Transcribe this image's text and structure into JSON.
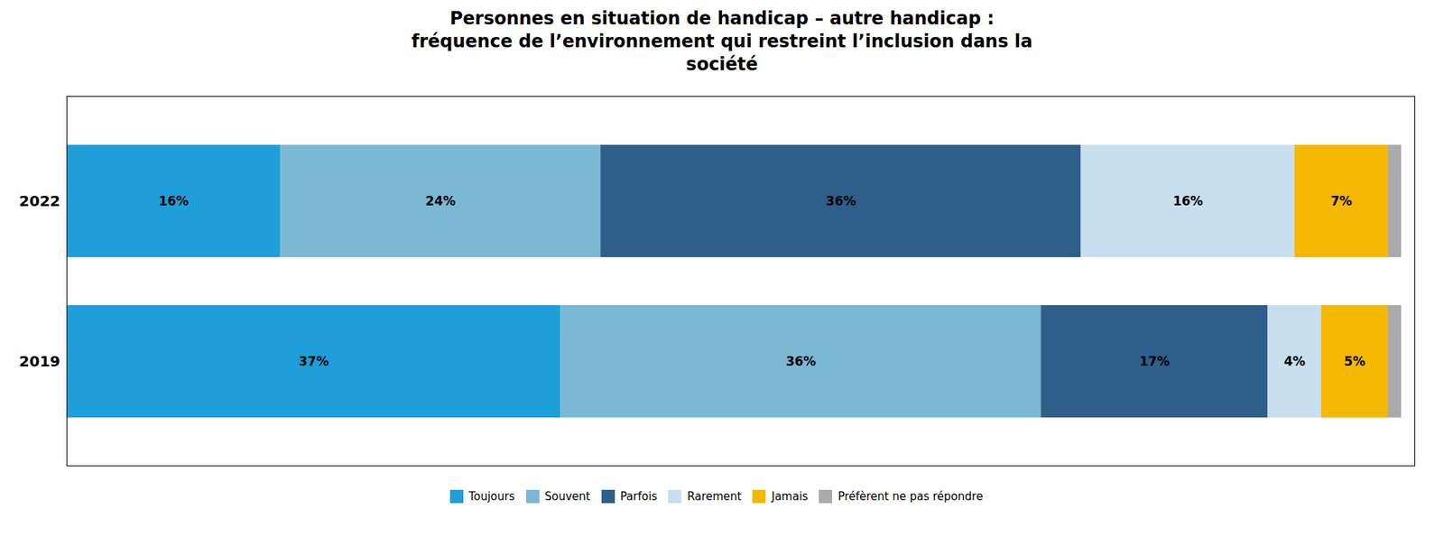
{
  "chart_data": {
    "type": "bar",
    "orientation": "horizontal",
    "stacked": true,
    "title": "Personnes en situation de handicap – autre handicap :\nfréquence de l’environnement qui restreint l’inclusion dans la\nsociété",
    "categories": [
      "2022",
      "2019"
    ],
    "series": [
      {
        "name": "Toujours",
        "color": "#1E9FD9",
        "values": [
          16,
          37
        ],
        "value_labels": [
          "16%",
          "37%"
        ]
      },
      {
        "name": "Souvent",
        "color": "#7BB8D4",
        "values": [
          24,
          36
        ],
        "value_labels": [
          "24%",
          "36%"
        ]
      },
      {
        "name": "Parfois",
        "color": "#2E5F8A",
        "values": [
          36,
          17
        ],
        "value_labels": [
          "36%",
          "17%"
        ]
      },
      {
        "name": "Rarement",
        "color": "#C8DFF0",
        "values": [
          16,
          4
        ],
        "value_labels": [
          "16%",
          "4%"
        ]
      },
      {
        "name": "Jamais",
        "color": "#F5B800",
        "values": [
          7,
          5
        ],
        "value_labels": [
          "7%",
          "5%"
        ]
      },
      {
        "name": "Préfèrent ne pas répondre",
        "color": "#AAAAAA",
        "values": [
          1,
          1
        ],
        "value_labels": [
          null,
          null
        ]
      }
    ],
    "xlim": [
      0,
      101
    ],
    "tick_labels": "y",
    "data_labels": true,
    "legend": "bottom",
    "grid": false
  }
}
